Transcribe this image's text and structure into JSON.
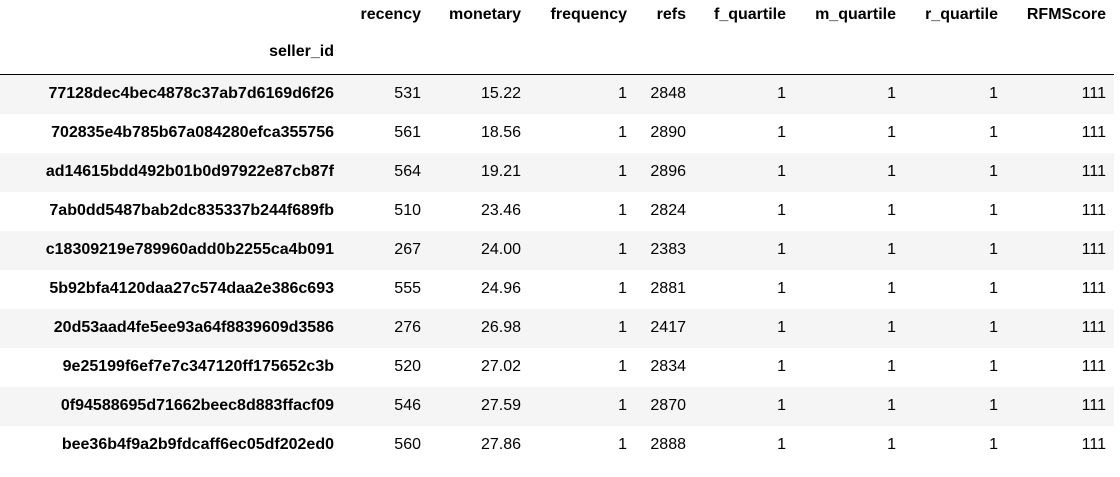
{
  "table": {
    "index_name": "seller_id",
    "columns": [
      "recency",
      "monetary",
      "frequency",
      "refs",
      "f_quartile",
      "m_quartile",
      "r_quartile",
      "RFMScore"
    ],
    "rows": [
      {
        "seller_id": "77128dec4bec4878c37ab7d6169d6f26",
        "cells": [
          "531",
          "15.22",
          "1",
          "2848",
          "1",
          "1",
          "1",
          "111"
        ]
      },
      {
        "seller_id": "702835e4b785b67a084280efca355756",
        "cells": [
          "561",
          "18.56",
          "1",
          "2890",
          "1",
          "1",
          "1",
          "111"
        ]
      },
      {
        "seller_id": "ad14615bdd492b01b0d97922e87cb87f",
        "cells": [
          "564",
          "19.21",
          "1",
          "2896",
          "1",
          "1",
          "1",
          "111"
        ]
      },
      {
        "seller_id": "7ab0dd5487bab2dc835337b244f689fb",
        "cells": [
          "510",
          "23.46",
          "1",
          "2824",
          "1",
          "1",
          "1",
          "111"
        ]
      },
      {
        "seller_id": "c18309219e789960add0b2255ca4b091",
        "cells": [
          "267",
          "24.00",
          "1",
          "2383",
          "1",
          "1",
          "1",
          "111"
        ]
      },
      {
        "seller_id": "5b92bfa4120daa27c574daa2e386c693",
        "cells": [
          "555",
          "24.96",
          "1",
          "2881",
          "1",
          "1",
          "1",
          "111"
        ]
      },
      {
        "seller_id": "20d53aad4fe5ee93a64f8839609d3586",
        "cells": [
          "276",
          "26.98",
          "1",
          "2417",
          "1",
          "1",
          "1",
          "111"
        ]
      },
      {
        "seller_id": "9e25199f6ef7e7c347120ff175652c3b",
        "cells": [
          "520",
          "27.02",
          "1",
          "2834",
          "1",
          "1",
          "1",
          "111"
        ]
      },
      {
        "seller_id": "0f94588695d71662beec8d883ffacf09",
        "cells": [
          "546",
          "27.59",
          "1",
          "2870",
          "1",
          "1",
          "1",
          "111"
        ]
      },
      {
        "seller_id": "bee36b4f9a2b9fdcaff6ec05df202ed0",
        "cells": [
          "560",
          "27.86",
          "1",
          "2888",
          "1",
          "1",
          "1",
          "111"
        ]
      }
    ]
  },
  "colors": {
    "stripe": "#f5f5f5",
    "background": "#ffffff",
    "text": "#000000",
    "header_rule": "#000000"
  }
}
